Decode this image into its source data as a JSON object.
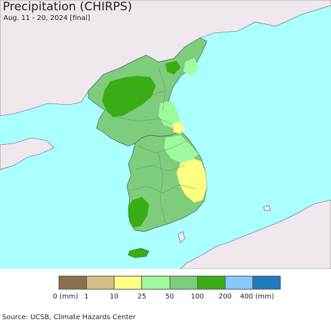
{
  "header": {
    "title": "Precipitation (CHIRPS)",
    "subtitle": "Aug. 11 - 20, 2024 [final]"
  },
  "map": {
    "sea_color": "#aaffff",
    "foreign_land_color": "#efe8ef",
    "border_color": "#666666"
  },
  "legend": {
    "colors": [
      "#8b7050",
      "#d2bf85",
      "#ffff80",
      "#9dfb9d",
      "#7dcd7d",
      "#3aad14",
      "#86c8ff",
      "#1f7abf"
    ],
    "labels": [
      "0 (mm)",
      "1",
      "10",
      "25",
      "50",
      "100",
      "200",
      "400 (mm)"
    ]
  },
  "footer": {
    "source": "Source: UCSB, Climate Hazards Center"
  }
}
